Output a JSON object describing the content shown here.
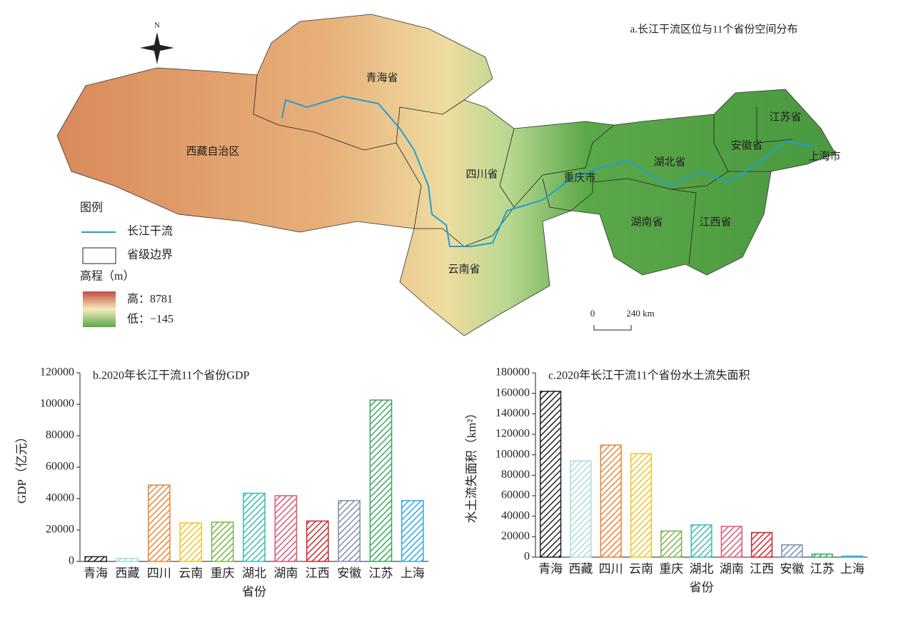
{
  "map": {
    "title": "a.长江干流区位与11个省份空间分布",
    "north": "N",
    "provinces": [
      "青海省",
      "西藏自治区",
      "四川省",
      "云南省",
      "重庆市",
      "湖北省",
      "湖南省",
      "江西省",
      "安徽省",
      "江苏省",
      "上海市"
    ],
    "legend": {
      "title": "图例",
      "river": "长江干流",
      "boundary": "省级边界",
      "elevation_title": "高程（m）",
      "high": "高：8781",
      "low": "低：−145"
    },
    "scale": {
      "start": "0",
      "end": "240 km"
    }
  },
  "chart_data": [
    {
      "type": "bar",
      "title": "b.2020年长江干流11个省份GDP",
      "x_label": "省份",
      "y_label": "GDP（亿元）",
      "categories": [
        "青海",
        "西藏",
        "四川",
        "云南",
        "重庆",
        "湖北",
        "湖南",
        "江西",
        "安徽",
        "江苏",
        "上海"
      ],
      "values": [
        3000,
        1900,
        48600,
        24500,
        25000,
        43400,
        41800,
        25700,
        38700,
        102700,
        38700
      ],
      "colors": [
        "#222222",
        "#a8dce0",
        "#e8863a",
        "#f0c330",
        "#7ab648",
        "#3bbcb0",
        "#e05470",
        "#d82028",
        "#7a8fb0",
        "#3aa860",
        "#38a8e0"
      ],
      "ylim": [
        0,
        120000
      ],
      "yticks": [
        0,
        20000,
        40000,
        60000,
        80000,
        100000,
        120000
      ]
    },
    {
      "type": "bar",
      "title": "c.2020年长江干流11个省份水土流失面积",
      "x_label": "省份",
      "y_label": "水土流失面积（km²）",
      "categories": [
        "青海",
        "西藏",
        "四川",
        "云南",
        "重庆",
        "湖北",
        "湖南",
        "江西",
        "安徽",
        "江苏",
        "上海"
      ],
      "values": [
        162000,
        94000,
        109500,
        101000,
        25500,
        31500,
        30000,
        24000,
        12000,
        3000,
        1000
      ],
      "colors": [
        "#222222",
        "#a8dce0",
        "#e8863a",
        "#f0c330",
        "#7ab648",
        "#3bbcb0",
        "#e05470",
        "#d82028",
        "#7a8fb0",
        "#3aa860",
        "#38a8e0"
      ],
      "ylim": [
        0,
        180000
      ],
      "yticks": [
        0,
        20000,
        40000,
        60000,
        80000,
        100000,
        120000,
        140000,
        160000,
        180000
      ]
    }
  ]
}
